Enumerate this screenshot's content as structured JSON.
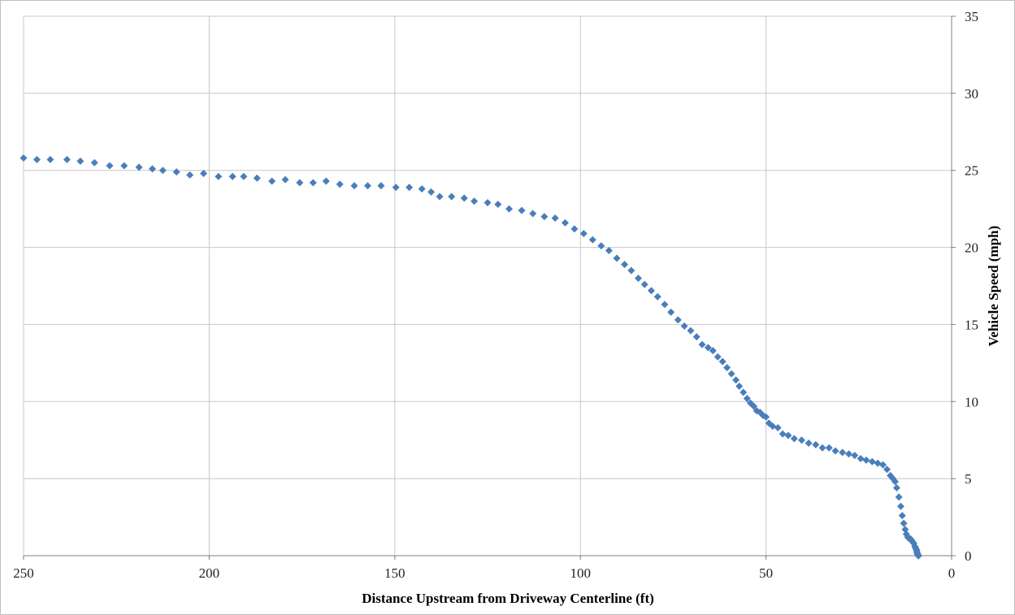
{
  "chart_data": {
    "type": "scatter",
    "title": "",
    "xlabel": "Distance Upstream from Driveway Centerline (ft)",
    "ylabel": "Vehicle Speed (mph)",
    "xlim": [
      250,
      0
    ],
    "ylim": [
      0,
      35
    ],
    "x_reversed": true,
    "y_axis_position": "right",
    "x_ticks": [
      250,
      200,
      150,
      100,
      50,
      0
    ],
    "y_ticks": [
      0,
      5,
      10,
      15,
      20,
      25,
      30,
      35
    ],
    "grid": true,
    "legend": "none",
    "marker": "diamond",
    "series": [
      {
        "color": "#4a7ebb",
        "x": [
          250.0,
          246.4,
          242.8,
          238.3,
          234.7,
          230.9,
          226.8,
          222.9,
          218.9,
          215.3,
          212.5,
          208.8,
          205.2,
          201.5,
          197.5,
          193.7,
          190.7,
          187.1,
          183.1,
          179.5,
          175.6,
          172.0,
          168.5,
          164.8,
          160.9,
          157.3,
          153.7,
          149.7,
          146.1,
          142.7,
          140.2,
          137.9,
          134.7,
          131.3,
          128.6,
          125.0,
          122.2,
          119.2,
          115.8,
          112.8,
          109.7,
          106.8,
          104.1,
          101.6,
          99.1,
          96.7,
          94.4,
          92.3,
          90.2,
          88.1,
          86.3,
          84.4,
          82.7,
          80.9,
          79.2,
          77.3,
          75.6,
          73.7,
          72.0,
          70.3,
          68.7,
          67.2,
          65.6,
          64.3,
          63.0,
          61.7,
          60.5,
          59.3,
          58.1,
          57.2,
          56.1,
          55.1,
          54.2,
          53.3,
          52.5,
          51.6,
          50.8,
          50.0,
          49.2,
          48.2,
          46.8,
          45.5,
          44.0,
          42.4,
          40.4,
          38.5,
          36.6,
          34.8,
          33.0,
          31.3,
          29.4,
          27.7,
          26.1,
          24.5,
          23.0,
          21.4,
          19.9,
          18.5,
          17.4,
          16.5,
          15.8,
          15.2,
          14.8,
          14.2,
          13.7,
          13.3,
          12.9,
          12.5,
          12.2,
          11.8,
          11.4,
          11.1,
          10.8,
          10.5,
          10.2,
          9.9,
          9.7,
          9.5,
          9.4,
          9.3,
          9.2,
          9.1,
          9.0,
          8.9
        ],
        "y": [
          25.8,
          25.7,
          25.7,
          25.7,
          25.6,
          25.5,
          25.3,
          25.3,
          25.2,
          25.1,
          25.0,
          24.9,
          24.7,
          24.8,
          24.6,
          24.6,
          24.6,
          24.5,
          24.3,
          24.4,
          24.2,
          24.2,
          24.3,
          24.1,
          24.0,
          24.0,
          24.0,
          23.9,
          23.9,
          23.8,
          23.6,
          23.3,
          23.3,
          23.2,
          23.0,
          22.9,
          22.8,
          22.5,
          22.4,
          22.2,
          22.0,
          21.9,
          21.6,
          21.2,
          20.9,
          20.5,
          20.1,
          19.8,
          19.3,
          18.9,
          18.5,
          18.0,
          17.6,
          17.2,
          16.8,
          16.3,
          15.8,
          15.3,
          14.9,
          14.6,
          14.2,
          13.7,
          13.5,
          13.3,
          12.9,
          12.6,
          12.2,
          11.8,
          11.4,
          11.0,
          10.6,
          10.2,
          9.9,
          9.7,
          9.4,
          9.3,
          9.1,
          9.0,
          8.6,
          8.4,
          8.3,
          7.9,
          7.8,
          7.6,
          7.5,
          7.3,
          7.2,
          7.0,
          7.0,
          6.8,
          6.7,
          6.6,
          6.5,
          6.3,
          6.2,
          6.1,
          6.0,
          5.9,
          5.6,
          5.2,
          5.0,
          4.8,
          4.4,
          3.8,
          3.2,
          2.6,
          2.1,
          1.7,
          1.4,
          1.2,
          1.1,
          1.1,
          1.0,
          0.9,
          0.8,
          0.6,
          0.5,
          0.4,
          0.3,
          0.2,
          0.1,
          0.1,
          0.0,
          0.0
        ]
      }
    ]
  }
}
